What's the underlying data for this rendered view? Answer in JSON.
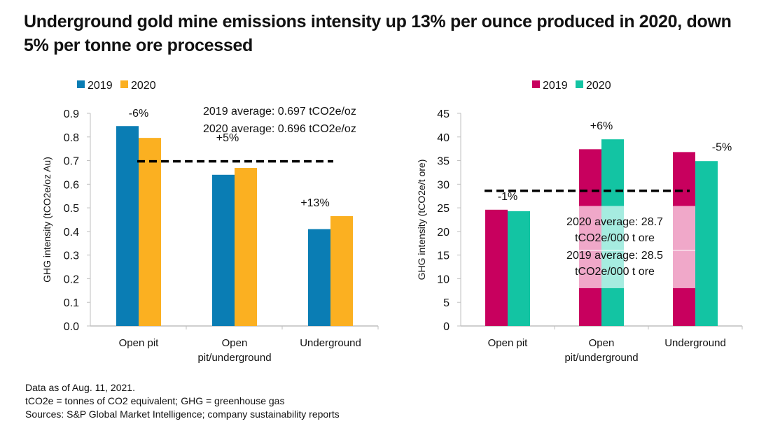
{
  "title": "Underground gold mine emissions intensity up 13% per ounce produced in 2020, down 5% per tonne ore processed",
  "footnotes": [
    "Data as of Aug. 11, 2021.",
    "tCO2e = tonnes of CO2 equivalent; GHG = greenhouse gas",
    "Sources: S&P Global Market Intelligence; company sustainability reports"
  ],
  "chart_data": [
    {
      "type": "bar",
      "title": "",
      "xlabel": "",
      "ylabel": "GHG intensity (tCO2e/oz Au)",
      "ylim": [
        0,
        0.9
      ],
      "yticks": [
        0.0,
        0.1,
        0.2,
        0.3,
        0.4,
        0.5,
        0.6,
        0.7,
        0.8,
        0.9
      ],
      "ytick_labels": [
        "0.0",
        "0.1",
        "0.2",
        "0.3",
        "0.4",
        "0.5",
        "0.6",
        "0.7",
        "0.8",
        "0.9"
      ],
      "grid": false,
      "legend_position": "top-left",
      "categories": [
        "Open pit",
        "Open pit/underground",
        "Underground"
      ],
      "category_lines": [
        [
          "Open pit"
        ],
        [
          "Open",
          "pit/underground"
        ],
        [
          "Underground"
        ]
      ],
      "series": [
        {
          "name": "2019",
          "color": "#0a7db4",
          "values": [
            0.846,
            0.64,
            0.41
          ]
        },
        {
          "name": "2020",
          "color": "#fbb021",
          "values": [
            0.796,
            0.669,
            0.465
          ]
        }
      ],
      "change_labels": [
        "-6%",
        "+5%",
        "+13%"
      ],
      "average_line": {
        "value": 0.697,
        "style": "dashed",
        "color": "#000000"
      },
      "average_notes": [
        "2019 average: 0.697 tCO2e/oz",
        "2020 average: 0.696 tCO2e/oz"
      ]
    },
    {
      "type": "bar",
      "title": "",
      "xlabel": "",
      "ylabel": "GHG intensity (tCO2e/t ore)",
      "ylim": [
        0,
        45
      ],
      "yticks": [
        0,
        5,
        10,
        15,
        20,
        25,
        30,
        35,
        40,
        45
      ],
      "ytick_labels": [
        "0",
        "5",
        "10",
        "15",
        "20",
        "25",
        "30",
        "35",
        "40",
        "45"
      ],
      "grid": false,
      "legend_position": "top-center",
      "categories": [
        "Open pit",
        "Open pit/underground",
        "Underground"
      ],
      "category_lines": [
        [
          "Open pit"
        ],
        [
          "Open",
          "pit/underground"
        ],
        [
          "Underground"
        ]
      ],
      "series": [
        {
          "name": "2019",
          "color": "#c8005e",
          "values": [
            24.6,
            37.4,
            36.8
          ]
        },
        {
          "name": "2020",
          "color": "#13c4a3",
          "values": [
            24.3,
            39.5,
            34.9
          ]
        }
      ],
      "change_labels": [
        "-1%",
        "+6%",
        "-5%"
      ],
      "average_line": {
        "value": 28.6,
        "style": "dashed",
        "color": "#000000"
      },
      "average_notes": [
        [
          "2020 average: 28.7",
          "tCO2e/000 t ore"
        ],
        [
          "2019 average: 28.5",
          "tCO2e/000 t ore"
        ]
      ]
    }
  ]
}
